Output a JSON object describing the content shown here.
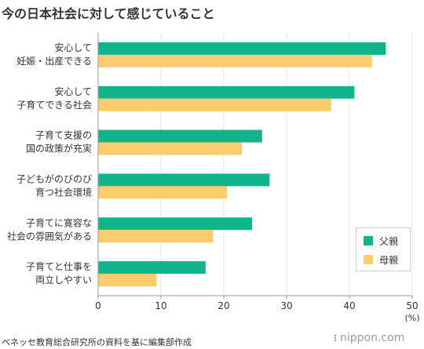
{
  "title": "今の日本社会に対して感じていること",
  "source": "ベネッセ教育総合研究所の資料を基に編集部作成",
  "logo_text": "nippon.com",
  "colors": {
    "father": "#12b48c",
    "mother": "#fbcc6e",
    "axis": "#999999",
    "grid": "#e6e6e6"
  },
  "chart_data": {
    "type": "bar",
    "orientation": "horizontal",
    "categories": [
      [
        "安心して",
        "妊娠・出産できる"
      ],
      [
        "安心して",
        "子育てできる社会"
      ],
      [
        "子育て支援の",
        "国の政策が充実"
      ],
      [
        "子どもがのびのび",
        "育つ社会環境"
      ],
      [
        "子育てに寛容な",
        "社会の雰囲気がある"
      ],
      [
        "子育てと仕事を",
        "両立しやすい"
      ]
    ],
    "series": [
      {
        "name": "父親",
        "values": [
          45.8,
          40.8,
          26.1,
          27.3,
          24.5,
          17.1
        ]
      },
      {
        "name": "母親",
        "values": [
          43.6,
          37.1,
          22.9,
          20.5,
          18.3,
          9.3
        ]
      }
    ],
    "xlim": [
      0,
      50
    ],
    "xticks": [
      0,
      10,
      20,
      30,
      40,
      50
    ],
    "xunit": "(%)",
    "grid": true,
    "legend_position": "bottom-right"
  }
}
